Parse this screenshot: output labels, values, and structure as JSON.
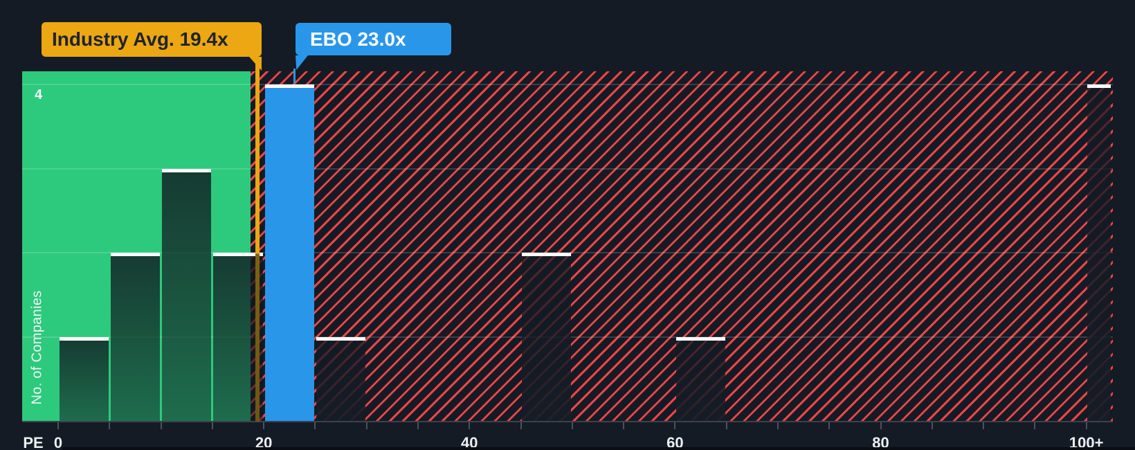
{
  "chart_data": {
    "type": "bar",
    "subtype": "histogram",
    "title": "",
    "xlabel": "PE",
    "ylabel": "No. of Companies",
    "ymax": 4,
    "ymax_label": "4",
    "x_axis": {
      "min": 0,
      "max": 102.5,
      "minor_tick_step": 5,
      "tick_labels": [
        {
          "value": 0,
          "label": "0"
        },
        {
          "value": 20,
          "label": "20"
        },
        {
          "value": 40,
          "label": "40"
        },
        {
          "value": 60,
          "label": "60"
        },
        {
          "value": 80,
          "label": "80"
        },
        {
          "value": 100,
          "label": "100+"
        }
      ]
    },
    "buckets": [
      {
        "from": 0,
        "to": 5,
        "count": 1,
        "zone": "in"
      },
      {
        "from": 5,
        "to": 10,
        "count": 2,
        "zone": "in"
      },
      {
        "from": 10,
        "to": 15,
        "count": 3,
        "zone": "in"
      },
      {
        "from": 15,
        "to": 20,
        "count": 2,
        "zone": "in"
      },
      {
        "from": 20,
        "to": 25,
        "count": 4,
        "zone": "ebo"
      },
      {
        "from": 25,
        "to": 30,
        "count": 1,
        "zone": "out"
      },
      {
        "from": 45,
        "to": 50,
        "count": 2,
        "zone": "out"
      },
      {
        "from": 60,
        "to": 65,
        "count": 1,
        "zone": "out"
      },
      {
        "from": 100,
        "to": 102.5,
        "count": 4,
        "zone": "out",
        "bucket_label": "100+"
      }
    ],
    "markers": [
      {
        "name": "industry-average",
        "label": "Industry Avg. 19.4x",
        "value": 19.4,
        "color": "#ECA712"
      },
      {
        "name": "ebo",
        "label": "EBO 23.0x",
        "value": 23.0,
        "color": "#2A96EA"
      }
    ],
    "layout_hints": {
      "grid": "horizontal",
      "green_zone_end": 18.7,
      "legend": "none"
    }
  },
  "colors": {
    "background": "#151B24",
    "green_zone": "#2DC97D",
    "hatch_stripe_red": "#EF4449",
    "ebo_bar_blue": "#2A96EA",
    "industry_marker_gold": "#ECA712",
    "bar_cap_white": "#FFFFFF",
    "axis_text": "#EDF0F4"
  }
}
